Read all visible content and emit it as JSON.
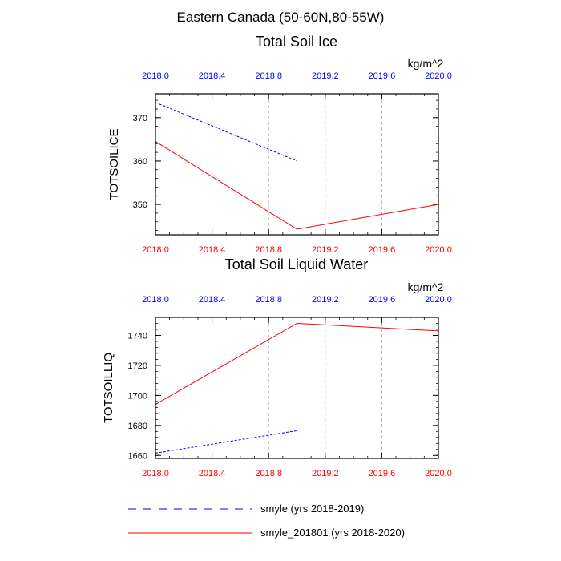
{
  "title": "Eastern Canada (50-60N,80-55W)",
  "colors": {
    "series_blue": "#0000ff",
    "series_red": "#ff0000",
    "grid": "#aaaaaa",
    "axis": "#000000"
  },
  "legend": [
    {
      "label": "smyle (yrs 2018-2019)",
      "color": "#0000ff",
      "dash": "dashed"
    },
    {
      "label": "smyle_201801 (yrs 2018-2020)",
      "color": "#ff0000",
      "dash": "solid"
    }
  ],
  "chart_data": [
    {
      "type": "line",
      "title": "Total Soil Ice",
      "units": "kg/m^2",
      "ylabel": "TOTSOILICE",
      "xlim": [
        2018.0,
        2020.0
      ],
      "ylim": [
        343,
        375.5
      ],
      "xticks": [
        "2018.0",
        "2018.4",
        "2018.8",
        "2019.2",
        "2019.6",
        "2020.0"
      ],
      "xtick_values": [
        2018.0,
        2018.4,
        2018.8,
        2019.2,
        2019.6,
        2020.0
      ],
      "yticks": [
        "350",
        "360",
        "370"
      ],
      "ytick_values": [
        350,
        360,
        370
      ],
      "grid": "vertical dashed",
      "series": [
        {
          "name": "smyle (yrs 2018-2019)",
          "color": "#0000ff",
          "dash": "dashed",
          "x": [
            2018.0,
            2019.0
          ],
          "y": [
            373.5,
            360.0
          ]
        },
        {
          "name": "smyle_201801 (yrs 2018-2020)",
          "color": "#ff0000",
          "dash": "solid",
          "x": [
            2018.0,
            2019.0,
            2020.0
          ],
          "y": [
            364.5,
            344.3,
            350.0
          ]
        }
      ]
    },
    {
      "type": "line",
      "title": "Total Soil Liquid Water",
      "units": "kg/m^2",
      "ylabel": "TOTSOILLIQ",
      "xlim": [
        2018.0,
        2020.0
      ],
      "ylim": [
        1658,
        1752
      ],
      "xticks": [
        "2018.0",
        "2018.4",
        "2018.8",
        "2019.2",
        "2019.6",
        "2020.0"
      ],
      "xtick_values": [
        2018.0,
        2018.4,
        2018.8,
        2019.2,
        2019.6,
        2020.0
      ],
      "yticks": [
        "1660",
        "1680",
        "1700",
        "1720",
        "1740"
      ],
      "ytick_values": [
        1660,
        1680,
        1700,
        1720,
        1740
      ],
      "grid": "vertical dashed",
      "series": [
        {
          "name": "smyle (yrs 2018-2019)",
          "color": "#0000ff",
          "dash": "dashed",
          "x": [
            2018.0,
            2019.0
          ],
          "y": [
            1661.5,
            1676.5
          ]
        },
        {
          "name": "smyle_201801 (yrs 2018-2020)",
          "color": "#ff0000",
          "dash": "solid",
          "x": [
            2018.0,
            2019.0,
            2020.0
          ],
          "y": [
            1694.0,
            1748.0,
            1743.0
          ]
        }
      ]
    }
  ]
}
